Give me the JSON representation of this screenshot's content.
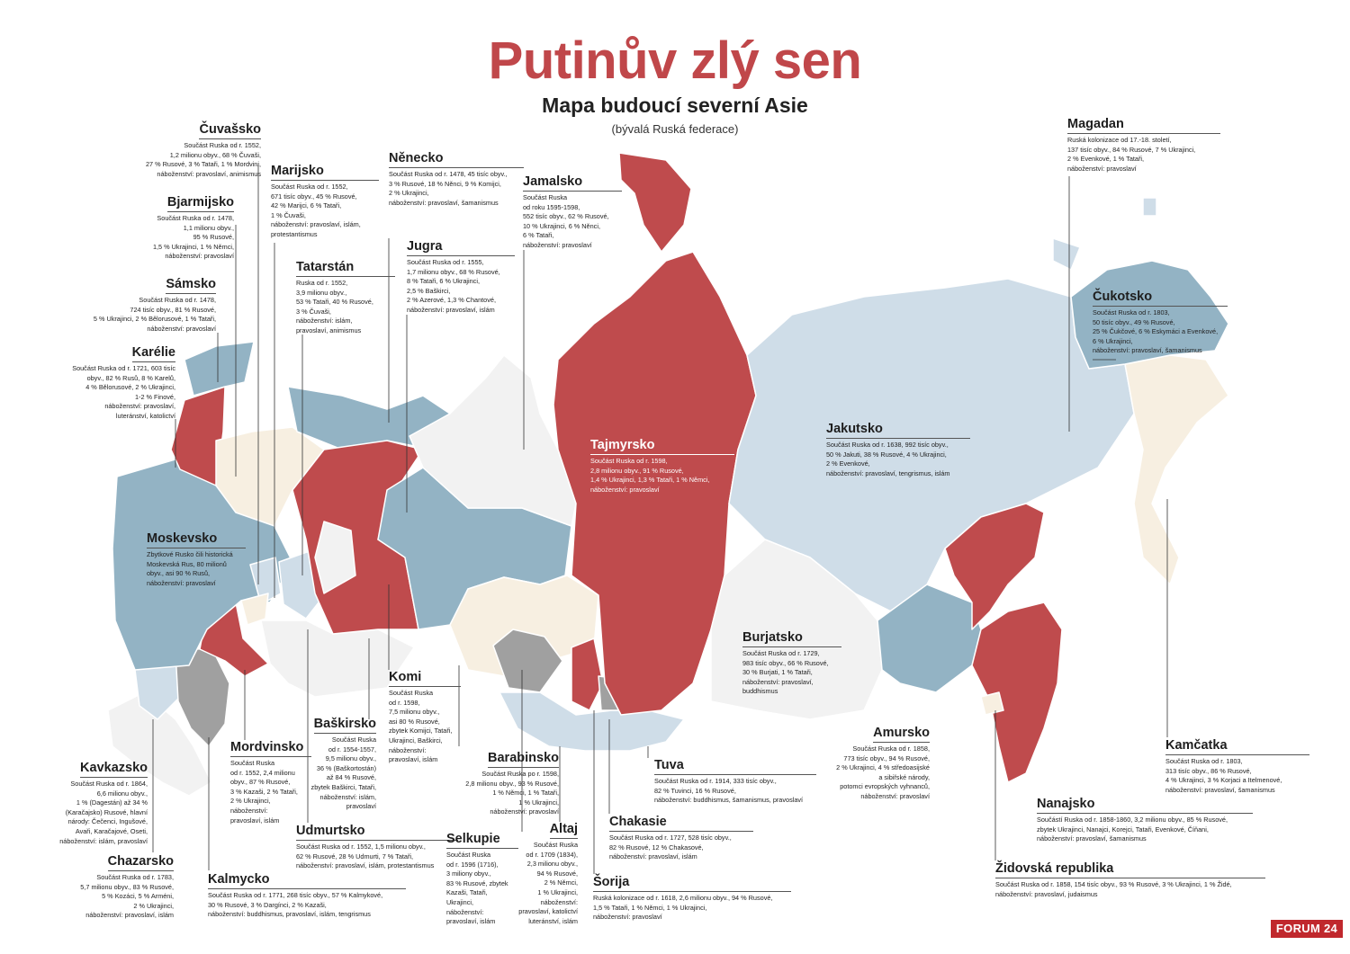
{
  "header": {
    "title": "Putinův zlý sen",
    "subtitle": "Mapa budoucí severní Asie",
    "note": "(bývalá Ruská federace)"
  },
  "colors": {
    "red": "#bf4b4d",
    "blue": "#93b3c4",
    "lightblue": "#cfdde8",
    "cream": "#f7efe1",
    "lightgray": "#f2f2f2",
    "gray": "#a0a0a0",
    "border": "#ffffff"
  },
  "regions": [
    {
      "id": "cuvassko",
      "name": "Čuvašsko",
      "text": "Součást Ruska od r. 1552,\n1,2 milionu obyv., 68 % Čuvaši,\n27 % Rusové, 3 % Tataři, 1 % Mordvini,\nnáboženství: pravoslaví, animismus"
    },
    {
      "id": "bjarmijsko",
      "name": "Bjarmijsko",
      "text": "Součást Ruska od r. 1478,\n1,1 milionu obyv.,\n95 % Rusové,\n1,5 % Ukrajinci, 1 % Němci,\nnáboženství: pravoslaví"
    },
    {
      "id": "samsko",
      "name": "Sámsko",
      "text": "Součást Ruska od r. 1478,\n724 tisíc obyv., 81 % Rusové,\n5 % Ukrajinci, 2 % Bělorusové, 1 % Tataři,\nnáboženství: pravoslaví"
    },
    {
      "id": "karelie",
      "name": "Karélie",
      "text": "Součást Ruska od r. 1721, 603 tisíc\nobyv., 82 % Rusů, 8 % Karelů,\n4 % Bělorusové, 2 % Ukrajinci,\n1-2 % Finové,\nnáboženství: pravoslaví,\nluteránství, katolictví"
    },
    {
      "id": "marijsko",
      "name": "Marijsko",
      "text": "Součást Ruska od r. 1552,\n671 tisíc obyv., 45 % Rusové,\n42 % Marijci, 6 % Tataři,\n1 % Čuvaši,\nnáboženství: pravoslaví, islám,\nprotestantismus"
    },
    {
      "id": "tatarstan",
      "name": "Tatarstán",
      "text": "Ruska od r. 1552,\n3,9 milionu obyv.,\n53 % Tataři, 40 % Rusové,\n3 % Čuvaši,\nnáboženství: islám,\npravoslaví, animismus"
    },
    {
      "id": "nenecko",
      "name": "Něnecko",
      "text": "Součást Ruska od r. 1478, 45 tisíc obyv.,\n3 % Rusové, 18 % Něnci, 9 % Komijci,\n2 % Ukrajinci,\nnáboženství: pravoslaví, šamanismus"
    },
    {
      "id": "jamalsko",
      "name": "Jamalsko",
      "text": "Součást Ruska\nod roku 1595-1598,\n552 tisíc obyv., 62 % Rusové,\n10 % Ukrajinci, 6 % Něnci,\n6 % Tataři,\nnáboženství: pravoslaví"
    },
    {
      "id": "jugra",
      "name": "Jugra",
      "text": "Součást Ruska od r. 1555,\n1,7 milionu obyv., 68 % Rusové,\n8 % Tataři, 6 % Ukrajinci,\n2,5 % Baškirci,\n2 % Azerové, 1,3 % Chantové,\nnáboženství: pravoslaví, islám"
    },
    {
      "id": "magadan",
      "name": "Magadan",
      "text": "Ruská kolonizace od 17.-18. století,\n137 tisíc obyv., 84 % Rusové, 7 % Ukrajinci,\n2 % Evenkové, 1 % Tataři,\nnáboženství: pravoslaví"
    },
    {
      "id": "cukotsko",
      "name": "Čukotsko",
      "text": "Součást Ruska od r. 1803,\n50 tisíc obyv., 49 % Rusové,\n25 % Čukčové, 6 % Eskymáci a Evenkové,\n6 % Ukrajinci,\nnáboženství: pravoslaví, šamanismus"
    },
    {
      "id": "jakutsko",
      "name": "Jakutsko",
      "text": "Součást Ruska od r. 1638, 992 tisíc obyv.,\n50 % Jakuti, 38 % Rusové, 4 % Ukrajinci,\n2 % Evenkové,\nnáboženství: pravoslaví, tengrismus, islám"
    },
    {
      "id": "tajmyrsko",
      "name": "Tajmyrsko",
      "text": "Součást Ruska od r. 1598,\n2,8 milionu obyv., 91 % Rusové,\n1,4 % Ukrajinci, 1,3 % Tataři, 1 % Němci,\nnáboženství: pravoslaví"
    },
    {
      "id": "moskevsko",
      "name": "Moskevsko",
      "text": "Zbytkové Rusko čili historická\nMoskevská Rus, 80 milionů\nobyv., asi 90 % Rusů,\nnáboženství: pravoslaví"
    },
    {
      "id": "burjatsko",
      "name": "Burjatsko",
      "text": "Součást Ruska od r. 1729,\n983 tisíc obyv., 66 % Rusové,\n30 % Burjati, 1 % Tataři,\nnáboženství: pravoslaví,\nbuddhismus"
    },
    {
      "id": "komi",
      "name": "Komi",
      "text": "Součást Ruska\nod r. 1598,\n7,5 milionu obyv.,\nasi 80 % Rusové,\nzbytek Komijci, Tataři,\nUkrajinci, Baškirci,\nnáboženství:\npravoslaví, islám"
    },
    {
      "id": "baskirsko",
      "name": "Baškirsko",
      "text": "Součást Ruska\nod r. 1554-1557,\n9,5 milionu obyv.,\n36 % (Baškortostán)\naž 84 % Rusové,\nzbytek Baškirci, Tataři,\nnáboženství: islám,\npravoslaví"
    },
    {
      "id": "mordvinsko",
      "name": "Mordvinsko",
      "text": "Součást Ruska\nod r. 1552, 2,4 milionu\nobyv., 87 % Rusové,\n3 % Kazaši, 2 % Tataři,\n2 % Ukrajinci,\nnáboženství:\npravoslaví, islám"
    },
    {
      "id": "amursko",
      "name": "Amursko",
      "text": "Součást Ruska od r. 1858,\n773 tisíc obyv., 94 % Rusové,\n2 % Ukrajinci, 4 % středoasijské\na sibiřské národy,\npotomci evropských vyhnanců,\nnáboženství: pravoslaví"
    },
    {
      "id": "barabinsko",
      "name": "Barabinsko",
      "text": "Součást Ruska po r. 1598,\n2,8 milionu obyv., 93 % Rusové,\n1 % Němci, 1 % Tataři,\n1 % Ukrajinci,\nnáboženství: pravoslaví"
    },
    {
      "id": "tuva",
      "name": "Tuva",
      "text": "Součást Ruska od r. 1914, 333 tisíc obyv.,\n82 % Tuvinci, 16 % Rusové,\nnáboženství: buddhismus, šamanismus, pravoslaví"
    },
    {
      "id": "kamcatka",
      "name": "Kamčatka",
      "text": "Součást Ruska od r. 1803,\n313 tisíc obyv., 86 % Rusové,\n4 % Ukrajinci, 3 % Korjaci a Itelmenové,\nnáboženství: pravoslaví, šamanismus"
    },
    {
      "id": "kavkazsko",
      "name": "Kavkazsko",
      "text": "Součást Ruska od r. 1864,\n6,6 milionu obyv.,\n1 % (Dagestán) až 34 %\n(Karačajsko) Rusové, hlavní\nnárody: Čečenci, Ingušové,\nAvaři, Karačajové, Oseti,\nnáboženství: islám, pravoslaví"
    },
    {
      "id": "udmurtsko",
      "name": "Udmurtsko",
      "text": "Součást Ruska od r. 1552, 1,5 milionu obyv.,\n62 % Rusové, 28 % Udmurti, 7 % Tataři,\nnáboženství: pravoslaví, islám, protestantismus"
    },
    {
      "id": "chakasie",
      "name": "Chakasie",
      "text": "Součást Ruska od r. 1727, 528 tisíc obyv.,\n82 % Rusové, 12 % Chakasové,\nnáboženství: pravoslaví, islám"
    },
    {
      "id": "nanajsko",
      "name": "Nanajsko",
      "text": "Součástí Ruska od r. 1858-1860, 3,2 milionu obyv., 85 % Rusové,\nzbytek Ukrajinci, Nanajci, Korejci, Tataři, Evenkové, Číňani,\nnáboženství: pravoslaví, šamanismus"
    },
    {
      "id": "selkupie",
      "name": "Selkupie",
      "text": "Součást Ruska\nod r. 1596 (1716),\n3 miliony obyv.,\n83 % Rusové, zbytek\nKazaši, Tataři,\nUkrajinci,\nnáboženství:\npravoslaví, islám"
    },
    {
      "id": "altaj",
      "name": "Altaj",
      "text": "Součást Ruska\nod r. 1709 (1834),\n2,3 milionu obyv.,\n94 % Rusové,\n2 % Němci,\n1 % Ukrajinci,\nnáboženství:\npravoslaví, katolictví\nluteránství, islám"
    },
    {
      "id": "chazarsko",
      "name": "Chazarsko",
      "text": "Součást Ruska od r. 1783,\n5,7 milionu obyv., 83 % Rusové,\n5 % Kozáci, 5 % Arméni,\n2 % Ukrajinci,\nnáboženství: pravoslaví, islám"
    },
    {
      "id": "kalmycko",
      "name": "Kalmycko",
      "text": "Součást Ruska od r. 1771, 268 tisíc obyv., 57 % Kalmykové,\n30 % Rusové, 3 % Dargínci, 2 % Kazaši,\nnáboženství: buddhismus, pravoslaví, islám, tengrismus"
    },
    {
      "id": "sorija",
      "name": "Šorija",
      "text": "Ruská kolonizace od r. 1618, 2,6 milionu obyv., 94 % Rusové,\n1,5 % Tataři, 1 % Němci, 1 % Ukrajinci,\nnáboženství: pravoslaví"
    },
    {
      "id": "zidovska",
      "name": "Židovská republika",
      "text": "Součást Ruska od r. 1858, 154 tisíc obyv., 93 % Rusové, 3 % Ukrajinci, 1 % Židé,\nnáboženství: pravoslaví, judaismus"
    }
  ],
  "logo": "FORUM 24"
}
